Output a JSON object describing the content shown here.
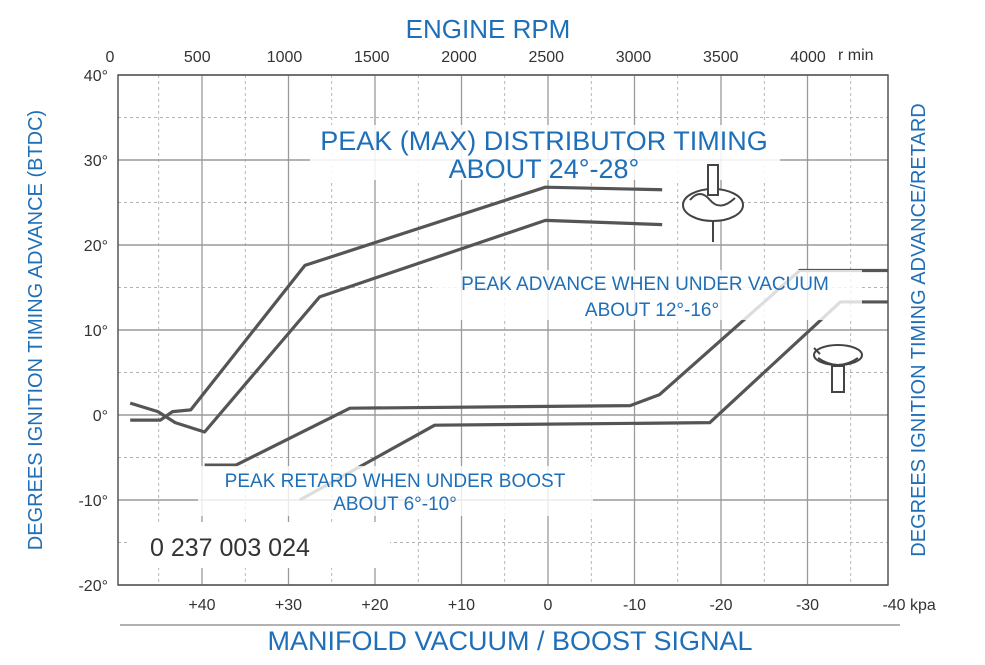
{
  "chart_data": {
    "type": "line",
    "title": "PEAK (MAX) DISTRIBUTOR TIMING",
    "subtitle": "ABOUT 24°-28°",
    "top_axis_label": "ENGINE RPM",
    "top_axis_unit": "r min",
    "top_ticks": [
      "0",
      "500",
      "1000",
      "1500",
      "2000",
      "2500",
      "3000",
      "3500",
      "4000"
    ],
    "top_tick_values": [
      0,
      500,
      1000,
      1500,
      2000,
      2500,
      3000,
      3500,
      4000
    ],
    "xlabel": "MANIFOLD VACUUM  / BOOST SIGNAL",
    "x_unit": "kpa",
    "x_ticks": [
      "+40",
      "+30",
      "+20",
      "+10",
      "0",
      "-10",
      "-20",
      "-30",
      "-40"
    ],
    "x_tick_values": [
      40,
      30,
      20,
      10,
      0,
      -10,
      -20,
      -30,
      -40
    ],
    "ylabel_left": "DEGREES IGNITION TIMING ADVANCE (BTDC)",
    "ylabel_right": "DEGREES IGNITION TIMING ADVANCE/RETARD",
    "y_ticks": [
      "40°",
      "30°",
      "20°",
      "10°",
      "0°",
      "-10°",
      "-20°"
    ],
    "y_tick_values": [
      40,
      30,
      20,
      10,
      0,
      -10,
      -20
    ],
    "xlim": [
      49,
      -40
    ],
    "ylim": [
      -20,
      40
    ],
    "grid": true,
    "series": [
      {
        "name": "distributor-upper",
        "x": [
          48.3,
          44.8,
          43.4,
          41.3,
          28.1,
          0.3,
          -13.2
        ],
        "y": [
          -0.6,
          -0.6,
          0.4,
          0.6,
          17.6,
          26.8,
          26.5
        ]
      },
      {
        "name": "distributor-lower",
        "x": [
          48.3,
          45.1,
          43.1,
          39.7,
          26.4,
          0.3,
          -13.2
        ],
        "y": [
          1.4,
          0.4,
          -0.9,
          -2.0,
          13.9,
          22.9,
          22.4
        ]
      },
      {
        "name": "vacuum-advance-upper",
        "x": [
          39.7,
          36.1,
          22.9,
          -9.5,
          -12.9,
          -29.1,
          -39.3
        ],
        "y": [
          -5.9,
          -5.9,
          0.8,
          1.1,
          2.4,
          17.0,
          17.0
        ]
      },
      {
        "name": "vacuum-advance-lower",
        "x": [
          28.7,
          13.1,
          -18.7,
          -33.8,
          -39.3
        ],
        "y": [
          -10.0,
          -1.2,
          -0.9,
          13.3,
          13.3
        ]
      }
    ],
    "annotations": {
      "vacuum_title": "PEAK ADVANCE WHEN UNDER VACUUM",
      "vacuum_sub": "ABOUT 12°-16°",
      "boost_title": "PEAK RETARD WHEN UNDER BOOST",
      "boost_sub": "ABOUT 6°-10°"
    },
    "part_number": "0 237 003 024",
    "icons": [
      "distributor-icon",
      "vacuum-canister-icon"
    ]
  },
  "colors": {
    "label": "#1f6fb8",
    "curve": "#555555",
    "grid": "#9a9a9a"
  }
}
